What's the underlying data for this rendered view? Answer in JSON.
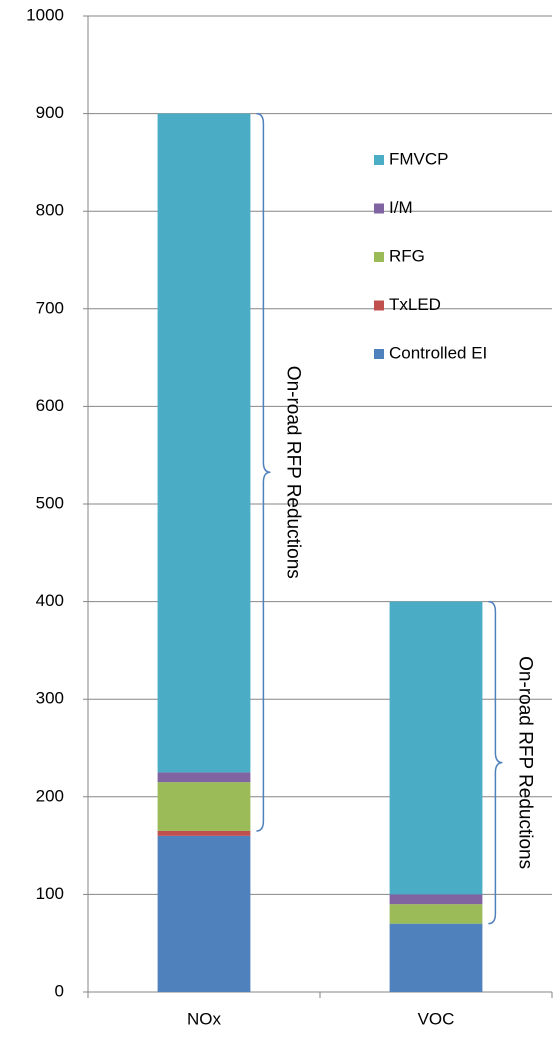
{
  "chart_data": {
    "type": "stacked_bar",
    "categories": [
      "NOx",
      "VOC"
    ],
    "series": [
      {
        "name": "Controlled EI",
        "color": "#4f81bd",
        "values": [
          160,
          70
        ]
      },
      {
        "name": "TxLED",
        "color": "#c0504d",
        "values": [
          5,
          0
        ]
      },
      {
        "name": "RFG",
        "color": "#9bbb59",
        "values": [
          50,
          20
        ]
      },
      {
        "name": "I/M",
        "color": "#8064a2",
        "values": [
          10,
          10
        ]
      },
      {
        "name": "FMVCP",
        "color": "#4bacc6",
        "values": [
          675,
          300
        ]
      }
    ],
    "annotations": [
      "On-road RFP Reductions",
      "On-road RFP Reductions"
    ],
    "ylim": [
      0,
      1000
    ],
    "yticks": [
      0,
      100,
      200,
      300,
      400,
      500,
      600,
      700,
      800,
      900,
      1000
    ],
    "grid": true,
    "legend": "right"
  }
}
